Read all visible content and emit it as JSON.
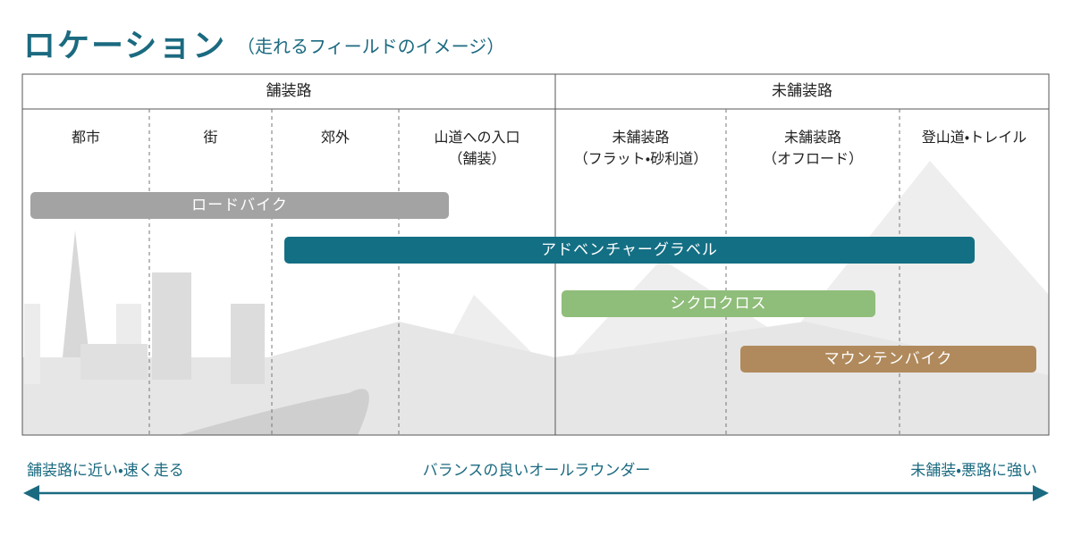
{
  "header": {
    "title": "ロケーション",
    "subtitle": "（走れるフィールドのイメージ）"
  },
  "table": {
    "groups": [
      "舗装路",
      "未舗装路"
    ],
    "columns": [
      [
        "都市"
      ],
      [
        "街"
      ],
      [
        "郊外"
      ],
      [
        "山道への入口",
        "（舗装）"
      ],
      [
        "未舗装路",
        "（フラット・砂利道）"
      ],
      [
        "未舗装路",
        "（オフロード）"
      ],
      [
        "登山道・トレイル"
      ]
    ]
  },
  "bars": [
    "ロードバイク",
    "アドベンチャーグラベル",
    "シクロクロス",
    "マウンテンバイク"
  ],
  "scale": {
    "left": "舗装路に近い・速く走る",
    "center": "バランスの良いオールラウンダー",
    "right": "未舗装・悪路に強い"
  }
}
